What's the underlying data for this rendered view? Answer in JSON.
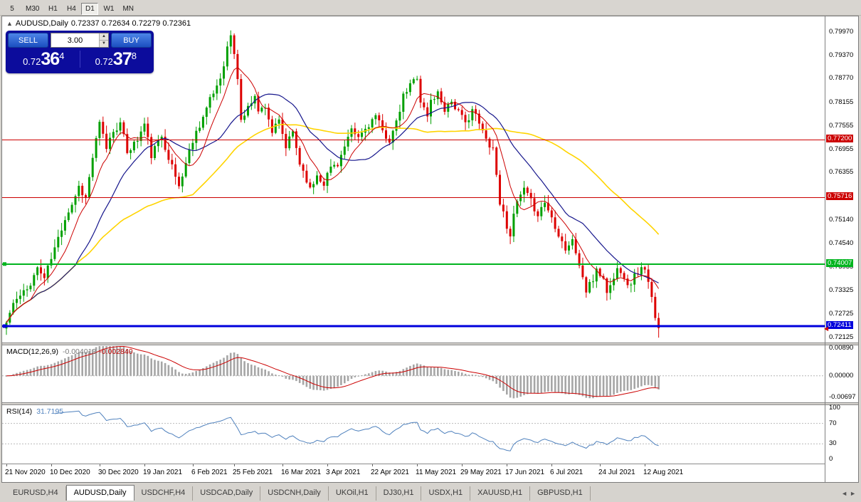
{
  "toolbar": {
    "timeframes": [
      {
        "label": "5",
        "active": false
      },
      {
        "label": "M30",
        "active": false
      },
      {
        "label": "H1",
        "active": false
      },
      {
        "label": "H4",
        "active": false
      },
      {
        "label": "D1",
        "active": true
      },
      {
        "label": "W1",
        "active": false
      },
      {
        "label": "MN",
        "active": false
      }
    ]
  },
  "chart": {
    "collapse_icon": "▲",
    "symbol": "AUDUSD,Daily",
    "ohlc": "0.72337 0.72634 0.72279 0.72361",
    "trade_panel": {
      "sell_label": "SELL",
      "buy_label": "BUY",
      "lot_value": "3.00",
      "spin_up": "▲",
      "spin_down": "▼",
      "sell_price": {
        "head": "0.72",
        "pips": "36",
        "frac": "4"
      },
      "buy_price": {
        "head": "0.72",
        "pips": "37",
        "frac": "8"
      }
    },
    "price_axis_labels": [
      {
        "text": "0.79970",
        "price": 0.7997
      },
      {
        "text": "0.79370",
        "price": 0.7937
      },
      {
        "text": "0.78770",
        "price": 0.7877
      },
      {
        "text": "0.78155",
        "price": 0.78155
      },
      {
        "text": "0.77555",
        "price": 0.77555
      },
      {
        "text": "0.76955",
        "price": 0.76955
      },
      {
        "text": "0.76355",
        "price": 0.76355
      },
      {
        "text": "0.75740",
        "price": 0.7574
      },
      {
        "text": "0.75140",
        "price": 0.7514
      },
      {
        "text": "0.74540",
        "price": 0.7454
      },
      {
        "text": "0.73935",
        "price": 0.73935
      },
      {
        "text": "0.73325",
        "price": 0.73325
      },
      {
        "text": "0.72725",
        "price": 0.72725
      },
      {
        "text": "0.72125",
        "price": 0.72125
      }
    ],
    "hlines": [
      {
        "price": 0.772,
        "tag": "0.77200",
        "color": "#cc0000",
        "width": 1
      },
      {
        "price": 0.75716,
        "tag": "0.75716",
        "color": "#cc0000",
        "width": 1
      },
      {
        "price": 0.74007,
        "tag": "0.74007",
        "color": "#00b41e",
        "width": 2
      },
      {
        "price": 0.72411,
        "tag": "0.72411",
        "color": "#0000dc",
        "width": 3
      }
    ],
    "current_price_marker": {
      "price": 0.72361,
      "glyph": "◀",
      "color": "#cc0000"
    }
  },
  "macd_panel": {
    "name": "MACD(12,26,9)",
    "value_main": "-0.004013",
    "value_signal": "-0.002840",
    "axis_labels": [
      {
        "text": "0.00890",
        "value": 0.0089
      },
      {
        "text": "0.00000",
        "value": 0
      },
      {
        "text": "-0.00697",
        "value": -0.00697
      }
    ]
  },
  "rsi_panel": {
    "name": "RSI(14)",
    "value": "31.7195",
    "axis_labels": [
      {
        "text": "100",
        "value": 100
      },
      {
        "text": "70",
        "value": 70
      },
      {
        "text": "30",
        "value": 30
      },
      {
        "text": "0",
        "value": 0
      }
    ],
    "levels": [
      70,
      30
    ]
  },
  "date_axis": {
    "labels": [
      {
        "text": "21 Nov 2020",
        "index": 0
      },
      {
        "text": "10 Dec 2020",
        "index": 13
      },
      {
        "text": "30 Dec 2020",
        "index": 27
      },
      {
        "text": "19 Jan 2021",
        "index": 40
      },
      {
        "text": "6 Feb 2021",
        "index": 54
      },
      {
        "text": "25 Feb 2021",
        "index": 66
      },
      {
        "text": "16 Mar 2021",
        "index": 80
      },
      {
        "text": "3 Apr 2021",
        "index": 93
      },
      {
        "text": "22 Apr 2021",
        "index": 106
      },
      {
        "text": "11 May 2021",
        "index": 119
      },
      {
        "text": "29 May 2021",
        "index": 132
      },
      {
        "text": "17 Jun 2021",
        "index": 145
      },
      {
        "text": "6 Jul 2021",
        "index": 158
      },
      {
        "text": "24 Jul 2021",
        "index": 172
      },
      {
        "text": "12 Aug 2021",
        "index": 185
      }
    ]
  },
  "tab_bar": {
    "tabs": [
      {
        "label": "EURUSD,H4",
        "active": false
      },
      {
        "label": "AUDUSD,Daily",
        "active": true
      },
      {
        "label": "USDCHF,H4",
        "active": false
      },
      {
        "label": "USDCAD,Daily",
        "active": false
      },
      {
        "label": "USDCNH,Daily",
        "active": false
      },
      {
        "label": "UKOil,H1",
        "active": false
      },
      {
        "label": "DJ30,H1",
        "active": false
      },
      {
        "label": "USDX,H1",
        "active": false
      },
      {
        "label": "XAUUSD,H1",
        "active": false
      },
      {
        "label": "GBPUSD,H1",
        "active": false
      }
    ],
    "scroll": {
      "left": "◄",
      "right": "►"
    }
  },
  "chart_data": {
    "type": "candlestick",
    "symbol": "AUDUSD",
    "timeframe": "Daily",
    "candle_count": 190,
    "seed": 11,
    "last_close": 0.72361,
    "price_range_top": 0.8037,
    "price_range_bottom": 0.7199,
    "price_path": [
      [
        0,
        0.725
      ],
      [
        2,
        0.73
      ],
      [
        6,
        0.7335
      ],
      [
        9,
        0.739
      ],
      [
        11,
        0.7365
      ],
      [
        14,
        0.744
      ],
      [
        17,
        0.752
      ],
      [
        19,
        0.7555
      ],
      [
        21,
        0.76
      ],
      [
        23,
        0.757
      ],
      [
        25,
        0.7675
      ],
      [
        27,
        0.776
      ],
      [
        29,
        0.77
      ],
      [
        31,
        0.7745
      ],
      [
        33,
        0.776
      ],
      [
        35,
        0.769
      ],
      [
        38,
        0.772
      ],
      [
        40,
        0.776
      ],
      [
        42,
        0.768
      ],
      [
        45,
        0.773
      ],
      [
        48,
        0.765
      ],
      [
        50,
        0.76
      ],
      [
        52,
        0.766
      ],
      [
        54,
        0.772
      ],
      [
        56,
        0.776
      ],
      [
        58,
        0.78
      ],
      [
        60,
        0.784
      ],
      [
        62,
        0.788
      ],
      [
        64,
        0.7955
      ],
      [
        65,
        0.799
      ],
      [
        67,
        0.788
      ],
      [
        68,
        0.777
      ],
      [
        70,
        0.78
      ],
      [
        72,
        0.784
      ],
      [
        73,
        0.779
      ],
      [
        75,
        0.781
      ],
      [
        77,
        0.774
      ],
      [
        79,
        0.7765
      ],
      [
        81,
        0.77
      ],
      [
        83,
        0.774
      ],
      [
        85,
        0.766
      ],
      [
        87,
        0.762
      ],
      [
        88,
        0.759
      ],
      [
        90,
        0.763
      ],
      [
        92,
        0.761
      ],
      [
        94,
        0.765
      ],
      [
        96,
        0.766
      ],
      [
        98,
        0.77
      ],
      [
        100,
        0.774
      ],
      [
        102,
        0.7725
      ],
      [
        105,
        0.776
      ],
      [
        107,
        0.778
      ],
      [
        109,
        0.774
      ],
      [
        111,
        0.772
      ],
      [
        113,
        0.776
      ],
      [
        115,
        0.783
      ],
      [
        117,
        0.786
      ],
      [
        119,
        0.7885
      ],
      [
        120,
        0.782
      ],
      [
        122,
        0.778
      ],
      [
        123,
        0.782
      ],
      [
        125,
        0.784
      ],
      [
        127,
        0.78
      ],
      [
        129,
        0.782
      ],
      [
        131,
        0.779
      ],
      [
        133,
        0.776
      ],
      [
        135,
        0.78
      ],
      [
        137,
        0.776
      ],
      [
        139,
        0.772
      ],
      [
        141,
        0.77
      ],
      [
        143,
        0.756
      ],
      [
        145,
        0.75
      ],
      [
        146,
        0.748
      ],
      [
        148,
        0.756
      ],
      [
        150,
        0.759
      ],
      [
        152,
        0.756
      ],
      [
        154,
        0.753
      ],
      [
        156,
        0.756
      ],
      [
        158,
        0.752
      ],
      [
        160,
        0.748
      ],
      [
        162,
        0.744
      ],
      [
        164,
        0.746
      ],
      [
        166,
        0.74
      ],
      [
        168,
        0.733
      ],
      [
        170,
        0.736
      ],
      [
        171,
        0.739
      ],
      [
        173,
        0.736
      ],
      [
        174,
        0.733
      ],
      [
        176,
        0.736
      ],
      [
        177,
        0.74
      ],
      [
        179,
        0.737
      ],
      [
        180,
        0.734
      ],
      [
        182,
        0.737
      ],
      [
        184,
        0.739
      ],
      [
        185,
        0.738
      ],
      [
        186,
        0.735
      ],
      [
        188,
        0.727
      ],
      [
        189,
        0.72361
      ]
    ],
    "indicators": {
      "ma_fast_period": 8,
      "ma_mid_period": 21,
      "ma_slow_period": 55,
      "macd": [
        12,
        26,
        9
      ],
      "rsi_period": 14
    },
    "colors": {
      "bull": "#00a000",
      "bear": "#dd0000",
      "ma_fast": "#cc0000",
      "ma_mid": "#16168c",
      "ma_slow": "#ffd400",
      "macd_hist": "#a6a6a6",
      "macd_signal": "#cc0000",
      "rsi_line": "#4f81bd"
    }
  }
}
